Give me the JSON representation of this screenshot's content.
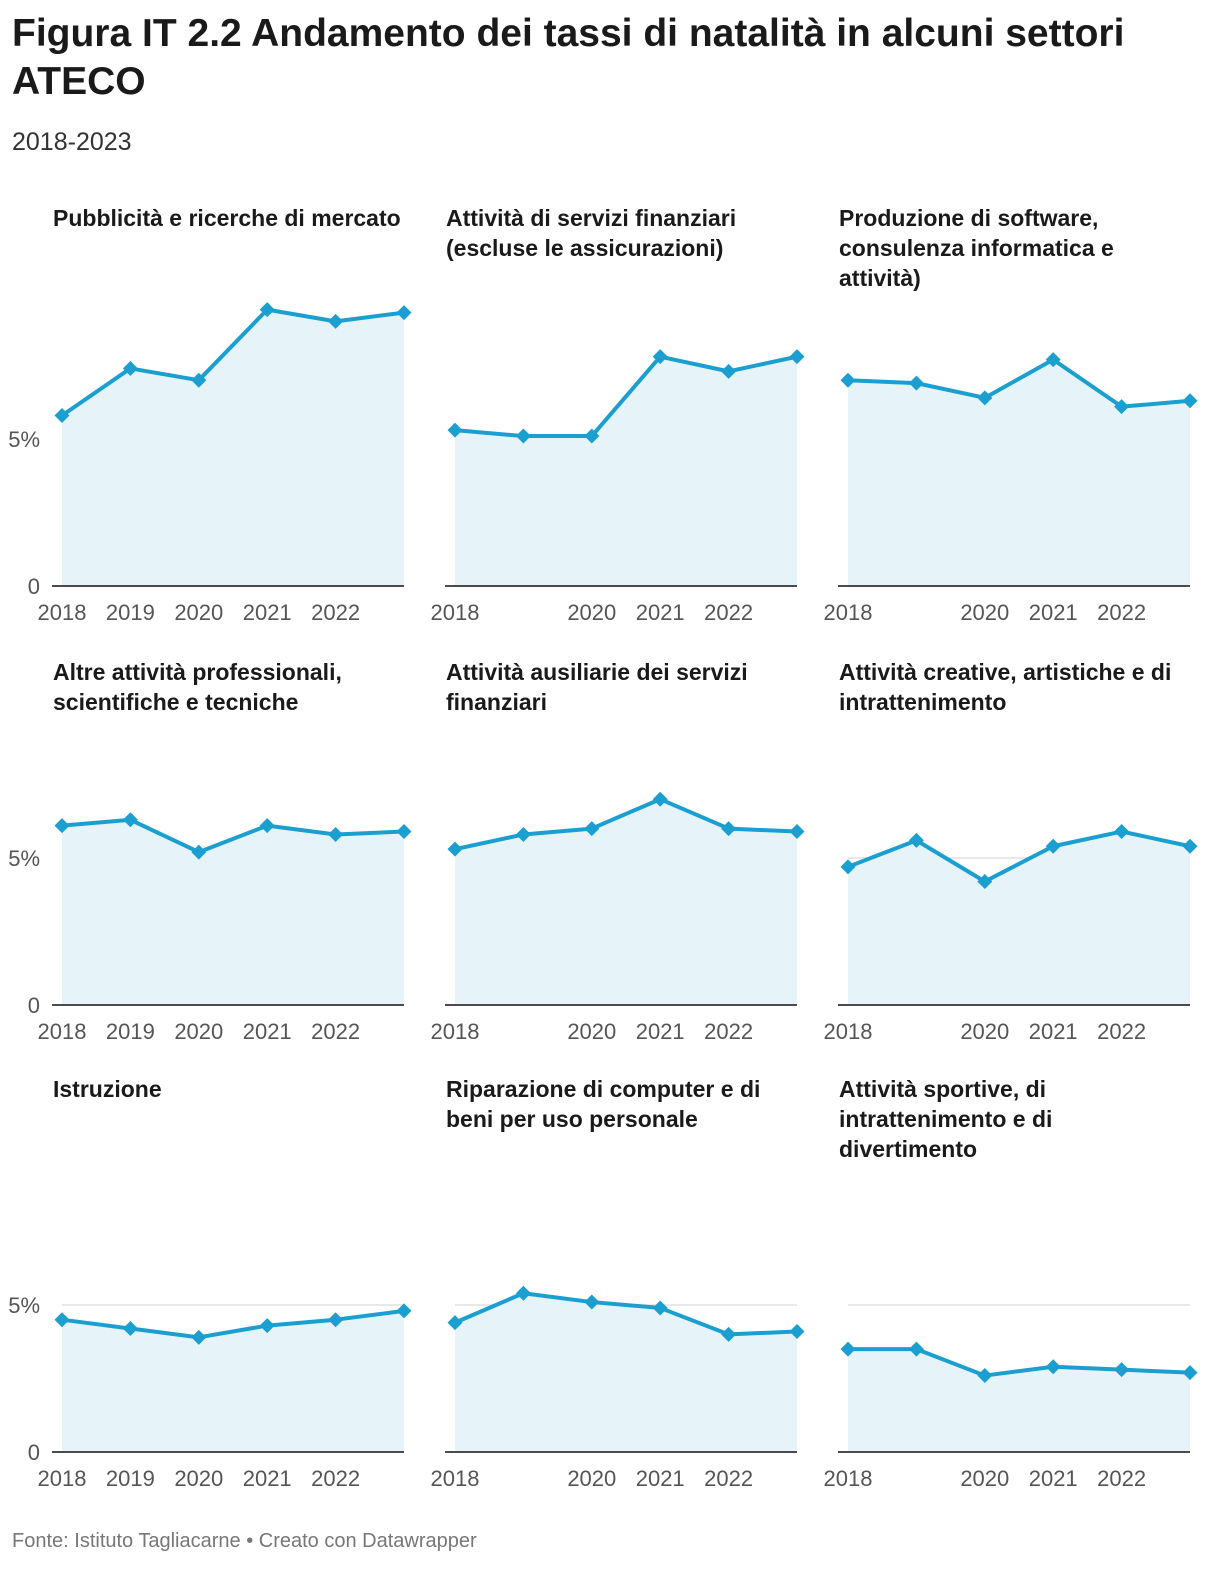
{
  "title": "Figura IT 2.2 Andamento dei tassi di natalità in alcuni settori ATECO",
  "subtitle": "2018-2023",
  "footer": "Fonte: Istituto Tagliacarne • Creato con Datawrapper",
  "colors": {
    "line": "#1a9fd0",
    "area": "#e6f4fa",
    "grid": "#e0e0e0",
    "axis": "#333333"
  },
  "chart_data": [
    {
      "type": "area",
      "title": "Pubblicità e ricerche di mercato",
      "x": [
        2018,
        2019,
        2020,
        2021,
        2022,
        2023
      ],
      "values": [
        5.8,
        7.4,
        7.0,
        9.4,
        9.0,
        9.3
      ],
      "ylim": [
        0,
        10
      ],
      "yticks": [
        {
          "value": 0,
          "label": "0"
        },
        {
          "value": 5,
          "label": "5%"
        }
      ],
      "ytick_labels_shown": true,
      "xticks": [
        "2018",
        "2019",
        "2020",
        "2021",
        "2022"
      ]
    },
    {
      "type": "area",
      "title": "Attività di servizi finanziari (escluse le assicurazioni)",
      "x": [
        2018,
        2019,
        2020,
        2021,
        2022,
        2023
      ],
      "values": [
        5.3,
        5.1,
        5.1,
        7.8,
        7.3,
        7.8
      ],
      "ylim": [
        0,
        10
      ],
      "yticks": [
        {
          "value": 0,
          "label": "0"
        },
        {
          "value": 5,
          "label": "5%"
        }
      ],
      "ytick_labels_shown": false,
      "xticks": [
        "2018",
        "",
        "2020",
        "2021",
        "2022"
      ]
    },
    {
      "type": "area",
      "title": "Produzione di software, consulenza informatica e attività)",
      "x": [
        2018,
        2019,
        2020,
        2021,
        2022,
        2023
      ],
      "values": [
        7.0,
        6.9,
        6.4,
        7.7,
        6.1,
        6.3
      ],
      "ylim": [
        0,
        10
      ],
      "yticks": [
        {
          "value": 0,
          "label": "0"
        },
        {
          "value": 5,
          "label": "5%"
        }
      ],
      "ytick_labels_shown": false,
      "xticks": [
        "2018",
        "",
        "2020",
        "2021",
        "2022"
      ]
    },
    {
      "type": "area",
      "title": "Altre attività professionali, scientifiche e tecniche",
      "x": [
        2018,
        2019,
        2020,
        2021,
        2022,
        2023
      ],
      "values": [
        6.1,
        6.3,
        5.2,
        6.1,
        5.8,
        5.9
      ],
      "ylim": [
        0,
        10
      ],
      "yticks": [
        {
          "value": 0,
          "label": "0"
        },
        {
          "value": 5,
          "label": "5%"
        }
      ],
      "ytick_labels_shown": true,
      "xticks": [
        "2018",
        "2019",
        "2020",
        "2021",
        "2022"
      ]
    },
    {
      "type": "area",
      "title": "Attività ausiliarie dei servizi finanziari",
      "x": [
        2018,
        2019,
        2020,
        2021,
        2022,
        2023
      ],
      "values": [
        5.3,
        5.8,
        6.0,
        7.0,
        6.0,
        5.9
      ],
      "ylim": [
        0,
        10
      ],
      "yticks": [
        {
          "value": 0,
          "label": "0"
        },
        {
          "value": 5,
          "label": "5%"
        }
      ],
      "ytick_labels_shown": false,
      "xticks": [
        "2018",
        "",
        "2020",
        "2021",
        "2022"
      ]
    },
    {
      "type": "area",
      "title": "Attività creative, artistiche e di intrattenimento",
      "x": [
        2018,
        2019,
        2020,
        2021,
        2022,
        2023
      ],
      "values": [
        4.7,
        5.6,
        4.2,
        5.4,
        5.9,
        5.4
      ],
      "ylim": [
        0,
        10
      ],
      "yticks": [
        {
          "value": 0,
          "label": "0"
        },
        {
          "value": 5,
          "label": "5%"
        }
      ],
      "ytick_labels_shown": false,
      "xticks": [
        "2018",
        "",
        "2020",
        "2021",
        "2022"
      ]
    },
    {
      "type": "area",
      "title": "Istruzione",
      "x": [
        2018,
        2019,
        2020,
        2021,
        2022,
        2023
      ],
      "values": [
        4.5,
        4.2,
        3.9,
        4.3,
        4.5,
        4.8
      ],
      "ylim": [
        0,
        10
      ],
      "yticks": [
        {
          "value": 0,
          "label": "0"
        },
        {
          "value": 5,
          "label": "5%"
        }
      ],
      "ytick_labels_shown": true,
      "xticks": [
        "2018",
        "2019",
        "2020",
        "2021",
        "2022"
      ]
    },
    {
      "type": "area",
      "title": "Riparazione di computer e di beni per uso personale",
      "x": [
        2018,
        2019,
        2020,
        2021,
        2022,
        2023
      ],
      "values": [
        4.4,
        5.4,
        5.1,
        4.9,
        4.0,
        4.1
      ],
      "ylim": [
        0,
        10
      ],
      "yticks": [
        {
          "value": 0,
          "label": "0"
        },
        {
          "value": 5,
          "label": "5%"
        }
      ],
      "ytick_labels_shown": false,
      "xticks": [
        "2018",
        "",
        "2020",
        "2021",
        "2022"
      ]
    },
    {
      "type": "area",
      "title": "Attività sportive, di intrattenimento e di divertimento",
      "x": [
        2018,
        2019,
        2020,
        2021,
        2022,
        2023
      ],
      "values": [
        3.5,
        3.5,
        2.6,
        2.9,
        2.8,
        2.7
      ],
      "ylim": [
        0,
        10
      ],
      "yticks": [
        {
          "value": 0,
          "label": "0"
        },
        {
          "value": 5,
          "label": "5%"
        }
      ],
      "ytick_labels_shown": false,
      "xticks": [
        "2018",
        "",
        "2020",
        "2021",
        "2022"
      ]
    }
  ]
}
